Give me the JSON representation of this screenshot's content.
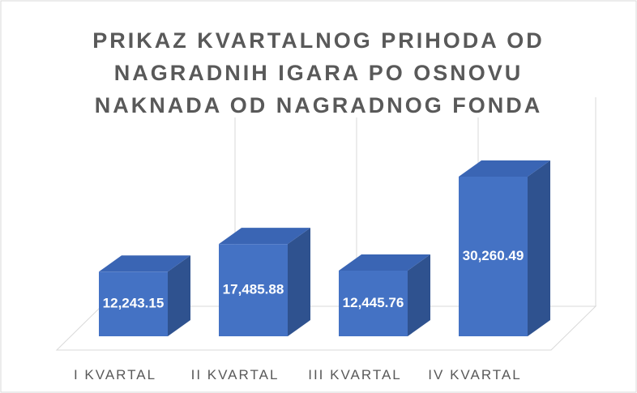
{
  "chart_data": {
    "type": "bar3d",
    "title": "PRIKAZ KVARTALNOG PRIHODA OD NAGRADNIH IGARA PO OSNOVU NAKNADA OD NAGRADNOG FONDA",
    "categories": [
      "I KVARTAL",
      "II KVARTAL",
      "III KVARTAL",
      "IV KVARTAL"
    ],
    "values": [
      12243.15,
      17485.88,
      12445.76,
      30260.49
    ],
    "value_labels": [
      "12,243.15",
      "17,485.88",
      "12,445.76",
      "30,260.49"
    ],
    "color": "#4472c4"
  }
}
